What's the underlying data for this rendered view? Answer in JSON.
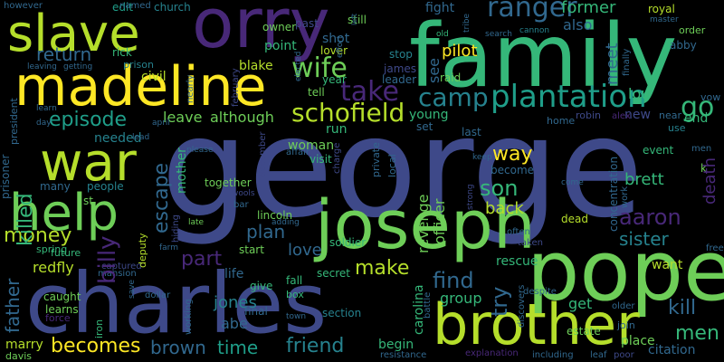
{
  "background": "#000000",
  "palette": [
    "#440154",
    "#482878",
    "#3e4989",
    "#31688e",
    "#26828e",
    "#1f9e89",
    "#35b779",
    "#6ece58",
    "#b5de2b",
    "#fde725"
  ],
  "words": {
    "george": "george",
    "family": "family",
    "charles": "charles",
    "pope": "pope",
    "joseph": "joseph",
    "brother": "brother",
    "orry": "orry",
    "madeline": "madeline",
    "slave": "slave",
    "war": "war",
    "help": "help",
    "plantation": "plantation",
    "camp": "camp",
    "schofield": "schofield",
    "wife": "wife",
    "take": "take",
    "ranger": "ranger",
    "go": "go",
    "episode": "episode",
    "return": "return",
    "killed": "killed",
    "escape": "escape",
    "billy": "billy",
    "part": "part",
    "money": "money",
    "redfly": "redfly",
    "father": "father",
    "becomes": "becomes",
    "brown": "brown",
    "time": "time",
    "friend": "friend",
    "make": "make",
    "find": "find",
    "try": "try",
    "son": "son",
    "way": "way",
    "aaron": "aaron",
    "sister": "sister",
    "kill": "kill",
    "men": "men",
    "plan": "plan",
    "love": "love",
    "group": "group",
    "back": "back",
    "revenge": "revenge",
    "officer": "officer",
    "carolina": "carolina",
    "jones": "jones",
    "abe": "abe",
    "mother": "mother",
    "leave": "leave",
    "although": "although",
    "needed": "needed",
    "blake": "blake",
    "civil": "civil",
    "point": "point",
    "shot": "shot",
    "pilot": "pilot",
    "fight": "fight",
    "former": "former",
    "meet": "meet",
    "lou": "lou",
    "end": "end",
    "new": "new",
    "death": "death",
    "brett": "brett",
    "citation": "citation",
    "place": "place",
    "get": "get",
    "begin": "begin",
    "woman": "woman",
    "run": "run",
    "young": "young",
    "become": "become",
    "life": "life",
    "lincoln": "lincoln",
    "start": "start",
    "rescue": "rescue",
    "caught": "caught",
    "learns": "learns",
    "marry": "marry",
    "davis": "davis",
    "also": "also",
    "event": "event",
    "want": "want",
    "concentration": "concentration",
    "prisoner": "prisoner",
    "president": "president",
    "edit": "edit",
    "church": "church",
    "named": "named",
    "however": "however",
    "prison": "prison",
    "rick": "rick",
    "owner": "owner",
    "royal": "royal",
    "abby": "abby",
    "see": "see",
    "raid": "raid",
    "james": "james",
    "leader": "leader",
    "stop": "stop",
    "year": "year",
    "tell": "tell",
    "still": "still",
    "past": "past",
    "lover": "lover",
    "soldier": "soldier",
    "dead": "dead",
    "together": "together",
    "people": "people",
    "many": "many",
    "spring": "spring",
    "future": "future",
    "deputy": "deputy",
    "hiding": "hiding",
    "section": "section",
    "final": "final",
    "secret": "secret",
    "give": "give",
    "fall": "fall",
    "box": "box",
    "working": "working",
    "iron": "iron",
    "dollar": "dollar",
    "force": "force",
    "mansion": "mansion",
    "captured": "captured",
    "home": "home",
    "robin": "robin",
    "near": "near",
    "use": "use",
    "order": "order",
    "vow": "vow",
    "set": "set",
    "last": "last",
    "visit": "visit",
    "private": "private",
    "local": "local",
    "february": "february",
    "elected": "elected",
    "nearly": "nearly",
    "december": "december",
    "affair": "affair",
    "charge": "charge",
    "battle": "battle",
    "discovers": "discovers",
    "join": "join",
    "estate": "estate",
    "older": "older",
    "including": "including",
    "leaf": "leaf",
    "poor": "poor",
    "free": "free",
    "resistance": "resistance",
    "explanation": "explanation",
    "despite": "despite",
    "often": "often",
    "taken": "taken",
    "master": "master",
    "search": "search",
    "cannon": "cannon",
    "old": "old",
    "finally": "finally",
    "work": "work",
    "late": "late",
    "bar": "bar",
    "st": "st",
    "leaving": "leaving",
    "getting": "getting",
    "alex": "alex",
    "april": "april",
    "learn": "learn",
    "keep": "keep",
    "strong": "strong",
    "please": "please",
    "lead": "lead",
    "adding": "adding",
    "wools": "wools",
    "farm": "farm",
    "save": "save",
    "town": "town",
    "come": "come",
    "effort": "effort",
    "tribe": "tribe",
    "left": "left",
    "k": "k",
    "day": "day",
    "men2": "men"
  }
}
